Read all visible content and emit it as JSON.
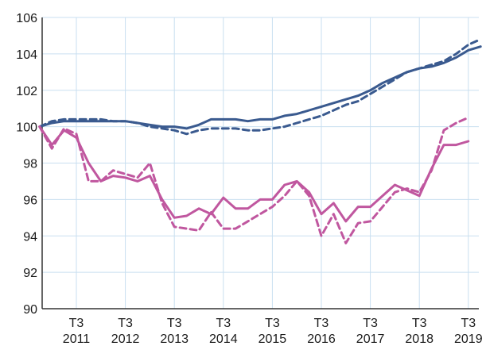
{
  "chart_data": {
    "type": "line",
    "title": "",
    "xlabel": "",
    "ylabel": "",
    "ylim": [
      90,
      106
    ],
    "y_ticks": [
      "90",
      "92",
      "94",
      "96",
      "98",
      "100",
      "102",
      "104",
      "106"
    ],
    "x_ticks": [
      {
        "top": "T3",
        "bottom": "2011"
      },
      {
        "top": "T3",
        "bottom": "2012"
      },
      {
        "top": "T3",
        "bottom": "2013"
      },
      {
        "top": "T3",
        "bottom": "2014"
      },
      {
        "top": "T3",
        "bottom": "2015"
      },
      {
        "top": "T3",
        "bottom": "2016"
      },
      {
        "top": "T3",
        "bottom": "2017"
      },
      {
        "top": "T3",
        "bottom": "2018"
      },
      {
        "top": "T3",
        "bottom": "2019"
      }
    ],
    "grid": true,
    "x_start": "2010-T4",
    "x_step": "quarter",
    "series": [
      {
        "color": "#3a5a8f",
        "dash": "solid",
        "values": [
          100.0,
          100.2,
          100.3,
          100.3,
          100.3,
          100.3,
          100.3,
          100.3,
          100.2,
          100.1,
          100.0,
          100.0,
          99.9,
          100.1,
          100.4,
          100.4,
          100.4,
          100.3,
          100.4,
          100.4,
          100.6,
          100.7,
          100.9,
          101.1,
          101.3,
          101.5,
          101.7,
          102.0,
          102.4,
          102.7,
          103.0,
          103.2,
          103.3,
          103.5,
          103.8,
          104.2,
          104.4
        ]
      },
      {
        "color": "#3a5a8f",
        "dash": "dashed",
        "values": [
          100.0,
          100.3,
          100.4,
          100.4,
          100.4,
          100.4,
          100.3,
          100.3,
          100.2,
          100.0,
          99.9,
          99.8,
          99.6,
          99.8,
          99.9,
          99.9,
          99.9,
          99.8,
          99.8,
          99.9,
          100.0,
          100.2,
          100.4,
          100.6,
          100.9,
          101.2,
          101.4,
          101.8,
          102.2,
          102.6,
          103.0,
          103.2,
          103.4,
          103.6,
          104.0,
          104.5,
          104.8
        ]
      },
      {
        "color": "#c0579f",
        "dash": "solid",
        "values": [
          100.0,
          99.0,
          99.8,
          99.4,
          98.0,
          97.0,
          97.3,
          97.2,
          97.0,
          97.3,
          96.0,
          95.0,
          95.1,
          95.5,
          95.2,
          96.1,
          95.5,
          95.5,
          96.0,
          96.0,
          96.8,
          97.0,
          96.4,
          95.2,
          95.8,
          94.8,
          95.6,
          95.6,
          96.2,
          96.8,
          96.5,
          96.2,
          97.7,
          99.0,
          99.0,
          99.2
        ]
      },
      {
        "color": "#c0579f",
        "dash": "dashed",
        "values": [
          100.0,
          98.8,
          99.9,
          99.6,
          97.0,
          97.0,
          97.6,
          97.4,
          97.2,
          98.0,
          95.8,
          94.5,
          94.4,
          94.3,
          95.3,
          94.4,
          94.4,
          94.8,
          95.2,
          95.6,
          96.2,
          97.0,
          96.2,
          94.0,
          95.2,
          93.6,
          94.7,
          94.8,
          95.6,
          96.4,
          96.6,
          96.4,
          97.6,
          99.8,
          100.2,
          100.5
        ]
      }
    ]
  }
}
